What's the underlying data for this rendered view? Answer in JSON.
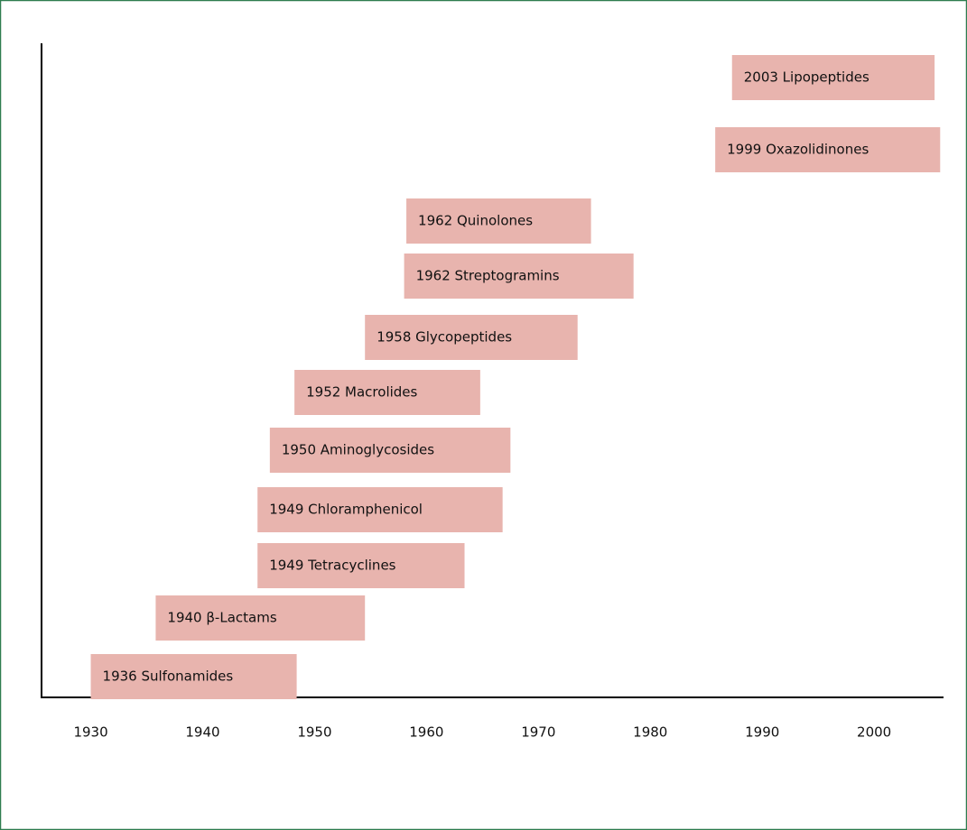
{
  "chart_data": {
    "type": "timeline",
    "bars": [
      {
        "label": "1936 Sulfonamides",
        "start": 1930,
        "end": 1948.4
      },
      {
        "label": "1940 β-Lactams",
        "start": 1935.8,
        "end": 1954.5
      },
      {
        "label": "1949 Tetracyclines",
        "start": 1944.9,
        "end": 1963.4
      },
      {
        "label": "1949 Chloramphenicol",
        "start": 1944.9,
        "end": 1966.8
      },
      {
        "label": "1950 Aminoglycosides",
        "start": 1946,
        "end": 1967.5
      },
      {
        "label": "1952 Macrolides",
        "start": 1948.2,
        "end": 1964.8
      },
      {
        "label": "1958 Glycopeptides",
        "start": 1954.5,
        "end": 1973.5
      },
      {
        "label": "1962 Streptogramins",
        "start": 1958,
        "end": 1978.5
      },
      {
        "label": "1962 Quinolones",
        "start": 1958.2,
        "end": 1974.7
      },
      {
        "label": "1999 Oxazolidinones",
        "start": 1985.8,
        "end": 2005.9
      },
      {
        "label": "2003 Lipopeptides",
        "start": 1987.3,
        "end": 2005.4
      }
    ],
    "color": "#e8b4ae",
    "xlim": [
      1925.6,
      2006.2
    ],
    "xticks": [
      1930,
      1940,
      1950,
      1960,
      1970,
      1980,
      1990,
      2000
    ]
  }
}
